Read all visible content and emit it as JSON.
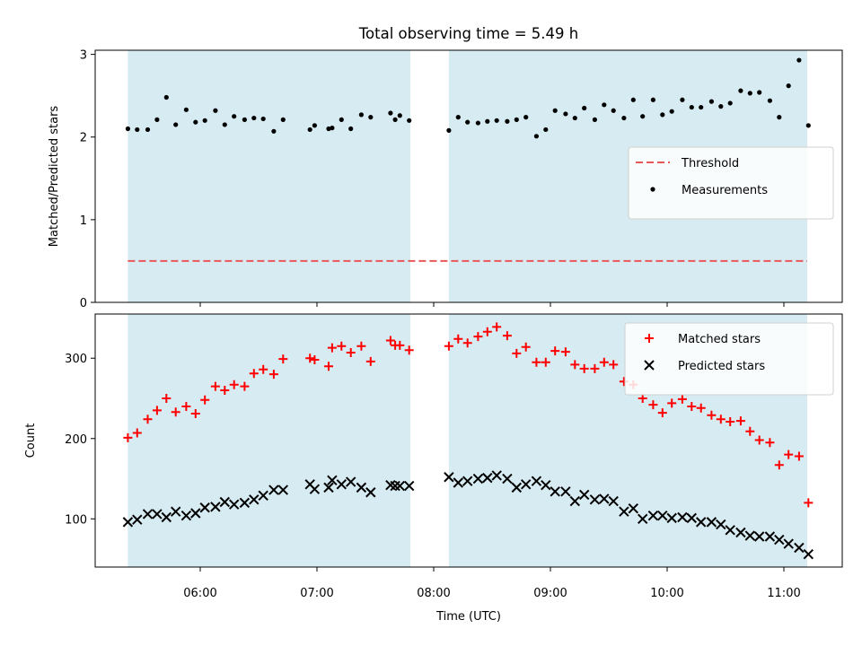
{
  "chart_data": {
    "title": "Total observing time = 5.49 h",
    "xlabel": "Time (UTC)",
    "x_ticks": [
      "06:00",
      "07:00",
      "08:00",
      "09:00",
      "10:00",
      "11:00"
    ],
    "x_tick_hours": [
      6,
      7,
      8,
      9,
      10,
      11
    ],
    "x_range_hours": [
      5.1,
      11.5
    ],
    "shaded_intervals_hours": [
      [
        5.38,
        7.8
      ],
      [
        8.13,
        11.2
      ]
    ],
    "colors": {
      "shade": "#add8e6",
      "threshold": "#e8585a",
      "matched": "#ff0000",
      "predicted": "#000000",
      "measurements": "#000000"
    },
    "panels": [
      {
        "type": "scatter",
        "ylabel": "Matched/Predicted stars",
        "ylim": [
          0,
          3.05
        ],
        "y_ticks": [
          0,
          1,
          2,
          3
        ],
        "legend_position": "center-right",
        "threshold": {
          "name": "Threshold",
          "value": 0.5
        },
        "series": [
          {
            "name": "Measurements",
            "marker": "dot",
            "x": [
              5.38,
              5.46,
              5.55,
              5.63,
              5.71,
              5.79,
              5.88,
              5.96,
              6.04,
              6.13,
              6.21,
              6.29,
              6.38,
              6.46,
              6.54,
              6.63,
              6.71,
              6.94,
              6.98,
              7.1,
              7.13,
              7.21,
              7.29,
              7.38,
              7.46,
              7.63,
              7.67,
              7.71,
              7.79,
              8.13,
              8.21,
              8.29,
              8.38,
              8.46,
              8.54,
              8.63,
              8.71,
              8.79,
              8.88,
              8.96,
              9.04,
              9.13,
              9.21,
              9.29,
              9.38,
              9.46,
              9.54,
              9.63,
              9.71,
              9.79,
              9.88,
              9.96,
              10.04,
              10.13,
              10.21,
              10.29,
              10.38,
              10.46,
              10.54,
              10.63,
              10.71,
              10.79,
              10.88,
              10.96,
              11.04,
              11.13,
              11.21
            ],
            "y": [
              2.1,
              2.09,
              2.09,
              2.21,
              2.48,
              2.15,
              2.33,
              2.18,
              2.2,
              2.32,
              2.15,
              2.25,
              2.21,
              2.23,
              2.22,
              2.07,
              2.21,
              2.09,
              2.14,
              2.1,
              2.11,
              2.21,
              2.1,
              2.27,
              2.24,
              2.29,
              2.21,
              2.26,
              2.2,
              2.08,
              2.24,
              2.18,
              2.17,
              2.19,
              2.2,
              2.19,
              2.21,
              2.24,
              2.01,
              2.09,
              2.32,
              2.28,
              2.23,
              2.35,
              2.21,
              2.39,
              2.32,
              2.23,
              2.45,
              2.25,
              2.45,
              2.27,
              2.31,
              2.45,
              2.36,
              2.36,
              2.43,
              2.37,
              2.41,
              2.56,
              2.53,
              2.54,
              2.44,
              2.24,
              2.62,
              2.93,
              2.14
            ]
          }
        ]
      },
      {
        "type": "scatter",
        "ylabel": "Count",
        "ylim": [
          40,
          355
        ],
        "y_ticks": [
          100,
          200,
          300
        ],
        "legend_position": "top-right",
        "series": [
          {
            "name": "Matched stars",
            "marker": "plus",
            "x": [
              5.38,
              5.46,
              5.55,
              5.63,
              5.71,
              5.79,
              5.88,
              5.96,
              6.04,
              6.13,
              6.21,
              6.29,
              6.38,
              6.46,
              6.54,
              6.63,
              6.71,
              6.94,
              6.98,
              7.1,
              7.13,
              7.21,
              7.29,
              7.38,
              7.46,
              7.63,
              7.67,
              7.71,
              7.79,
              8.13,
              8.21,
              8.29,
              8.38,
              8.46,
              8.54,
              8.63,
              8.71,
              8.79,
              8.88,
              8.96,
              9.04,
              9.13,
              9.21,
              9.29,
              9.38,
              9.46,
              9.54,
              9.63,
              9.71,
              9.79,
              9.88,
              9.96,
              10.04,
              10.13,
              10.21,
              10.29,
              10.38,
              10.46,
              10.54,
              10.63,
              10.71,
              10.79,
              10.88,
              10.96,
              11.04,
              11.13,
              11.21
            ],
            "y": [
              201,
              207,
              224,
              235,
              250,
              233,
              240,
              231,
              248,
              265,
              260,
              267,
              265,
              281,
              286,
              280,
              299,
              300,
              298,
              290,
              313,
              315,
              307,
              315,
              296,
              322,
              316,
              316,
              310,
              315,
              324,
              319,
              327,
              333,
              339,
              328,
              306,
              314,
              295,
              295,
              309,
              308,
              292,
              287,
              287,
              295,
              292,
              271,
              267,
              250,
              242,
              232,
              244,
              249,
              240,
              238,
              229,
              224,
              221,
              222,
              209,
              198,
              195,
              167,
              180,
              178,
              120
            ]
          },
          {
            "name": "Predicted stars",
            "marker": "x",
            "x": [
              5.38,
              5.46,
              5.55,
              5.63,
              5.71,
              5.79,
              5.88,
              5.96,
              6.04,
              6.13,
              6.21,
              6.29,
              6.38,
              6.46,
              6.54,
              6.63,
              6.71,
              6.94,
              6.98,
              7.1,
              7.13,
              7.21,
              7.29,
              7.38,
              7.46,
              7.63,
              7.67,
              7.71,
              7.79,
              8.13,
              8.21,
              8.29,
              8.38,
              8.46,
              8.54,
              8.63,
              8.71,
              8.79,
              8.88,
              8.96,
              9.04,
              9.13,
              9.21,
              9.29,
              9.38,
              9.46,
              9.54,
              9.63,
              9.71,
              9.79,
              9.88,
              9.96,
              10.04,
              10.13,
              10.21,
              10.29,
              10.38,
              10.46,
              10.54,
              10.63,
              10.71,
              10.79,
              10.88,
              10.96,
              11.04,
              11.13,
              11.21
            ],
            "y": [
              96,
              99,
              106,
              106,
              102,
              109,
              104,
              107,
              114,
              115,
              121,
              118,
              120,
              124,
              129,
              136,
              136,
              143,
              137,
              139,
              148,
              143,
              146,
              139,
              133,
              142,
              141,
              141,
              141,
              152,
              145,
              147,
              150,
              151,
              154,
              150,
              139,
              143,
              147,
              142,
              134,
              134,
              122,
              130,
              124,
              125,
              122,
              109,
              113,
              100,
              104,
              104,
              101,
              102,
              101,
              96,
              96,
              93,
              86,
              83,
              79,
              78,
              78,
              74,
              69,
              64,
              56
            ]
          }
        ]
      }
    ]
  }
}
